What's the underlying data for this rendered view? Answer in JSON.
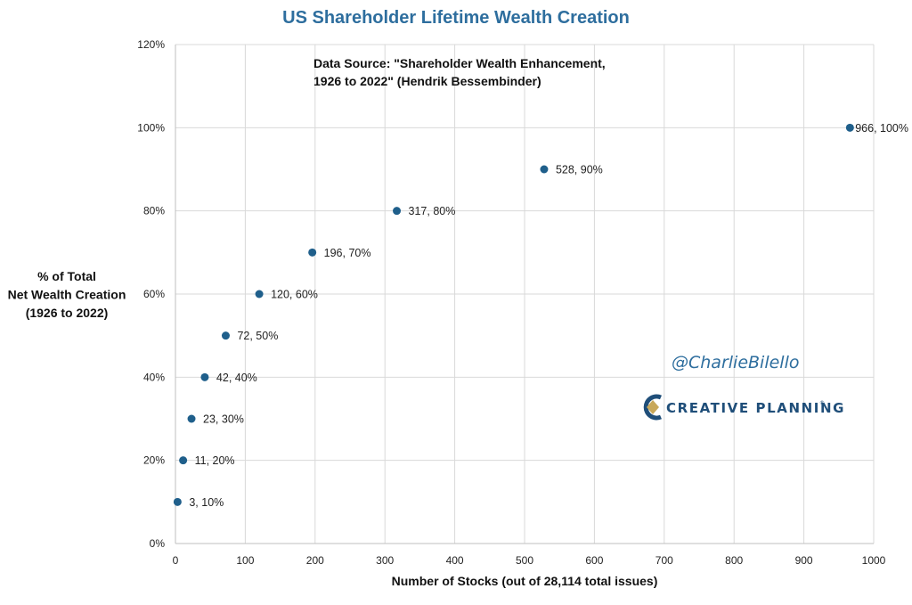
{
  "chart_data": {
    "type": "scatter",
    "title": "US Shareholder Lifetime Wealth Creation",
    "xlabel": "Number of Stocks (out of 28,114 total issues)",
    "ylabel": [
      "% of Total",
      "Net Wealth Creation",
      "(1926 to 2022)"
    ],
    "xlim": [
      0,
      1000
    ],
    "ylim": [
      0,
      120
    ],
    "x_ticks": [
      0,
      100,
      200,
      300,
      400,
      500,
      600,
      700,
      800,
      900,
      1000
    ],
    "y_ticks": [
      0,
      20,
      40,
      60,
      80,
      100,
      120
    ],
    "y_tick_labels": [
      "0%",
      "20%",
      "40%",
      "60%",
      "80%",
      "100%",
      "120%"
    ],
    "grid": true,
    "legend": "none",
    "point_color": "#1f5f8b",
    "points": [
      {
        "x": 3,
        "y": 10,
        "label": "3, 10%"
      },
      {
        "x": 11,
        "y": 20,
        "label": "11, 20%"
      },
      {
        "x": 23,
        "y": 30,
        "label": "23, 30%"
      },
      {
        "x": 42,
        "y": 40,
        "label": "42, 40%"
      },
      {
        "x": 72,
        "y": 50,
        "label": "72, 50%"
      },
      {
        "x": 120,
        "y": 60,
        "label": "120, 60%"
      },
      {
        "x": 196,
        "y": 70,
        "label": "196, 70%"
      },
      {
        "x": 317,
        "y": 80,
        "label": "317, 80%"
      },
      {
        "x": 528,
        "y": 90,
        "label": "528, 90%"
      },
      {
        "x": 966,
        "y": 100,
        "label": "966, 100%"
      }
    ],
    "annotations": {
      "source_line1": "Data Source: \"Shareholder Wealth Enhancement,",
      "source_line2": "1926 to 2022\" (Hendrik Bessembinder)"
    }
  },
  "watermark": {
    "handle": "@CharlieBilello",
    "brand": "CREATIVE PLANNING",
    "brand_color": "#1f4e79",
    "handle_color": "#2e6e9e",
    "logo_icon": "creative-planning-logo-icon"
  },
  "colors": {
    "title": "#2e6e9e",
    "grid": "#d9d9d9"
  }
}
